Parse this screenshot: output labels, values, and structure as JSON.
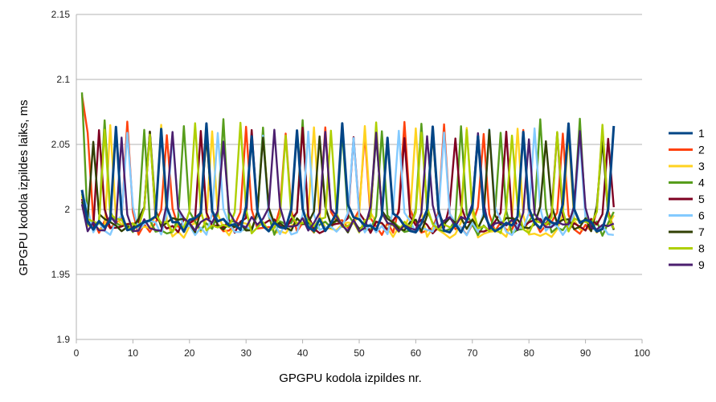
{
  "chart_data": {
    "type": "line",
    "title": "",
    "xlabel": "GPGPU kodola izpildes nr.",
    "ylabel": "GPGPU kodola izpildes laiks, ms",
    "xlim": [
      0,
      100
    ],
    "ylim": [
      1.9,
      2.15
    ],
    "x_ticks": [
      "0",
      "10",
      "20",
      "30",
      "40",
      "50",
      "60",
      "70",
      "80",
      "90",
      "100"
    ],
    "y_ticks": [
      "1.9",
      "1.95",
      "2",
      "2.05",
      "2.1",
      "2.15"
    ],
    "grid": "horizontal",
    "legend_position": "right",
    "series": [
      {
        "name": "1",
        "color": "#004586",
        "period": 8,
        "offset": 7,
        "peak": 2.067,
        "base": 1.988,
        "first": 2.015
      },
      {
        "name": "2",
        "color": "#ff420e",
        "period": 7,
        "offset": 2,
        "peak": 2.068,
        "base": 1.986,
        "first": 2.088
      },
      {
        "name": "3",
        "color": "#ffd320",
        "period": 9,
        "offset": 6,
        "peak": 2.066,
        "base": 1.984,
        "first": 2.01
      },
      {
        "name": "4",
        "color": "#579d1c",
        "period": 7,
        "offset": 5,
        "peak": 2.07,
        "base": 1.985,
        "first": 2.09
      },
      {
        "name": "5",
        "color": "#7e0021",
        "period": 9,
        "offset": 4,
        "peak": 2.066,
        "base": 1.987,
        "first": 2.008
      },
      {
        "name": "6",
        "color": "#83caff",
        "period": 8,
        "offset": 1,
        "peak": 2.065,
        "base": 1.986,
        "first": 2.012
      },
      {
        "name": "7",
        "color": "#314004",
        "period": 10,
        "offset": 3,
        "peak": 2.064,
        "base": 1.988,
        "first": 2.006
      },
      {
        "name": "8",
        "color": "#aecf00",
        "period": 8,
        "offset": 5,
        "peak": 2.067,
        "base": 1.987,
        "first": 2.012
      },
      {
        "name": "9",
        "color": "#4b1f6f",
        "period": 9,
        "offset": 8,
        "peak": 2.064,
        "base": 1.989,
        "first": 2.004
      }
    ],
    "n_points": 95
  }
}
